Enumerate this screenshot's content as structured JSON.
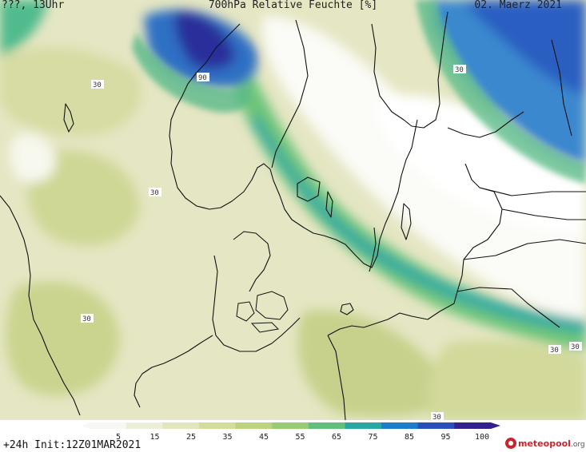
{
  "header": {
    "left": "???, 13Uhr",
    "title": "700hPa Relative Feuchte [%]",
    "date": "02. Maerz 2021"
  },
  "footer": {
    "init": "+24h  Init:12Z01MAR2021"
  },
  "logo": {
    "name": "meteopool",
    "suffix": ".org"
  },
  "legend": {
    "ticks": [
      "5",
      "15",
      "25",
      "35",
      "45",
      "55",
      "65",
      "75",
      "85",
      "95",
      "100"
    ],
    "colors": [
      "#f7f7f3",
      "#edeed8",
      "#e3e6bc",
      "#d3dc9a",
      "#bcd27e",
      "#98cc74",
      "#62c07c",
      "#27a7a4",
      "#1e7dc9",
      "#2a4fb8",
      "#34208c"
    ]
  },
  "contour_labels": [
    {
      "text": "90"
    },
    {
      "text": "30"
    },
    {
      "text": "30"
    },
    {
      "text": "30"
    },
    {
      "text": "30"
    },
    {
      "text": "30"
    },
    {
      "text": "30"
    },
    {
      "text": "30"
    }
  ]
}
